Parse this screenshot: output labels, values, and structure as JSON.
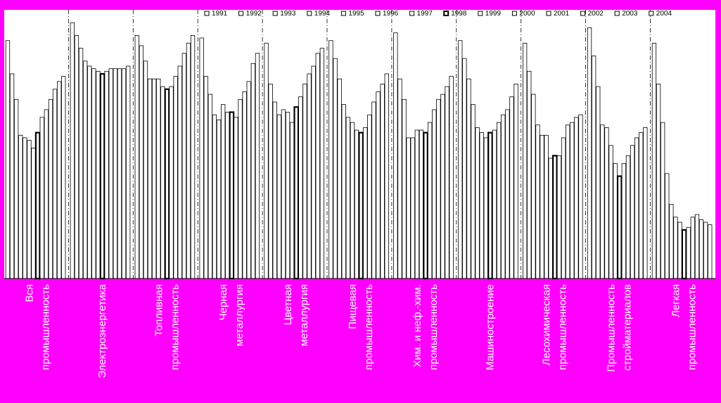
{
  "colors": {
    "background": "#ff00ff",
    "plot_area": "#ffffff",
    "bar_fill": "#ffffff",
    "bar_stroke": "#000000",
    "label_text": "#ffffff"
  },
  "chart_data": {
    "type": "bar",
    "grouped": true,
    "legend_position": "top",
    "legend": [
      "1991",
      "1992",
      "1993",
      "1994",
      "1995",
      "1996",
      "1997",
      "1998",
      "1999",
      "2000",
      "2001",
      "2002",
      "2003",
      "2004"
    ],
    "highlighted_series": "1998",
    "categories": [
      [
        "Вся",
        "промышленность"
      ],
      [
        "Электроэнергетика"
      ],
      [
        "Топливная",
        "промышленность"
      ],
      [
        "Черная",
        "металлургия"
      ],
      [
        "Цветная",
        "металлургия"
      ],
      [
        "Пищевая",
        "промышленность"
      ],
      [
        "Хим. и неф.-хим.",
        "промышленность"
      ],
      [
        "Машиностроение"
      ],
      [
        "Лесохимическая",
        "промышленность"
      ],
      [
        "Промышленность",
        "стройматериалов"
      ],
      [
        "Легкая",
        "промышленность"
      ]
    ],
    "series_values": [
      [
        93,
        80,
        70,
        56,
        55,
        54,
        51,
        57,
        63,
        66,
        70,
        74,
        77,
        79
      ],
      [
        100,
        95,
        90,
        85,
        83,
        82,
        81,
        80,
        81,
        82,
        82,
        82,
        82,
        83
      ],
      [
        95,
        91,
        85,
        78,
        78,
        78,
        75,
        74,
        75,
        79,
        83,
        88,
        92,
        95
      ],
      [
        94,
        79,
        72,
        64,
        62,
        68,
        65,
        65,
        63,
        70,
        73,
        77,
        84,
        88
      ],
      [
        92,
        76,
        69,
        64,
        66,
        65,
        61,
        67,
        71,
        76,
        80,
        83,
        88,
        90
      ],
      [
        93,
        86,
        78,
        68,
        63,
        61,
        58,
        57,
        59,
        64,
        69,
        73,
        76,
        80
      ],
      [
        96,
        78,
        70,
        55,
        55,
        58,
        58,
        57,
        61,
        66,
        70,
        72,
        75,
        79
      ],
      [
        93,
        86,
        78,
        68,
        59,
        57,
        55,
        57,
        58,
        61,
        64,
        66,
        71,
        76
      ],
      [
        92,
        81,
        72,
        60,
        56,
        56,
        47,
        48,
        48,
        55,
        60,
        61,
        63,
        64
      ],
      [
        98,
        87,
        75,
        60,
        59,
        52,
        45,
        40,
        45,
        48,
        52,
        55,
        57,
        59
      ],
      [
        92,
        76,
        61,
        41,
        29,
        24,
        22,
        19,
        20,
        24,
        25,
        23,
        22,
        21
      ]
    ],
    "ylim": [
      0,
      105
    ],
    "grid": false,
    "xlabel": "",
    "ylabel": ""
  }
}
